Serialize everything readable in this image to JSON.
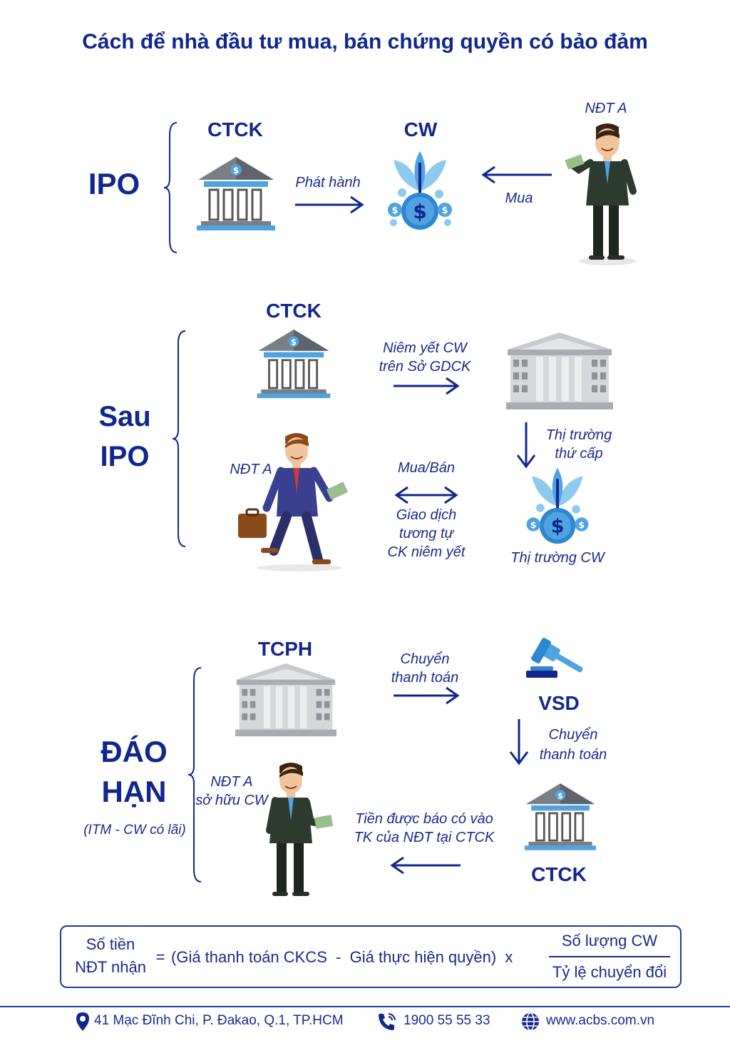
{
  "title": "Cách để nhà đầu tư mua, bán chứng quyền có bảo đảm",
  "ipo": {
    "section": "IPO",
    "ctck": "CTCK",
    "cw": "CW",
    "investor": "NĐT A",
    "issue": "Phát hành",
    "buy": "Mua"
  },
  "post_ipo": {
    "section_line1": "Sau",
    "section_line2": "IPO",
    "ctck": "CTCK",
    "listing_line1": "Niêm yết CW",
    "listing_line2": "trên Sở GDCK",
    "secondary_line1": "Thị trường",
    "secondary_line2": "thứ cấp",
    "investor": "NĐT A",
    "buysell": "Mua/Bán",
    "trade_line1": "Giao dịch",
    "trade_line2": "tương tự",
    "trade_line3": "CK niêm yết",
    "cw_market": "Thị trường CW"
  },
  "maturity": {
    "section_line1": "ĐÁO",
    "section_line2": "HẠN",
    "note": "(ITM - CW có lãi)",
    "tcph": "TCPH",
    "transfer1_line1": "Chuyển",
    "transfer1_line2": "thanh toán",
    "vsd": "VSD",
    "transfer2_line1": "Chuyển",
    "transfer2_line2": "thanh toán",
    "investor_line1": "NĐT A",
    "investor_line2": "sở hữu CW",
    "credit_line1": "Tiền được báo có vào",
    "credit_line2": "TK của NĐT tại CTCK",
    "ctck": "CTCK"
  },
  "formula": {
    "lhs_line1": "Số tiền",
    "lhs_line2": "NĐT nhận",
    "equals": "=",
    "middle": "(Giá thanh toán CKCS  -  Giá thực hiện quyền)  x",
    "numerator": "Số lượng CW",
    "denominator": "Tỷ lệ chuyển đổi"
  },
  "footer": {
    "address": "41 Mạc Đĩnh Chi, P. Đakao, Q.1, TP.HCM",
    "phone": "1900 55 55 33",
    "website": "www.acbs.com.vn"
  },
  "colors": {
    "brand": "#12268f",
    "accent": "#4fa3e0",
    "gray": "#b9bcc0"
  }
}
